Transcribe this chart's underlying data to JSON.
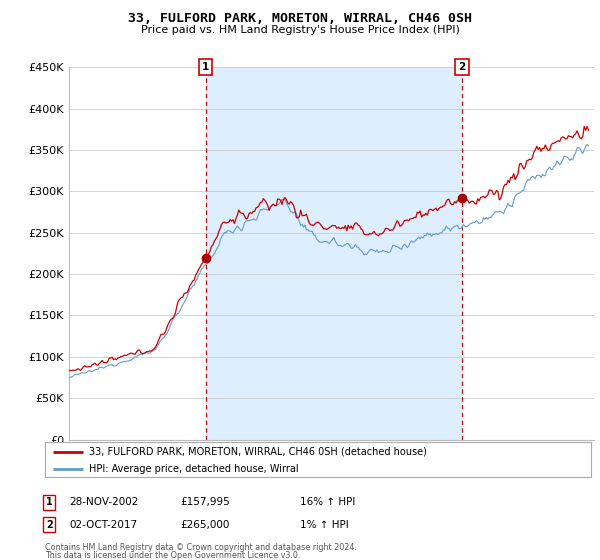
{
  "title": "33, FULFORD PARK, MORETON, WIRRAL, CH46 0SH",
  "subtitle": "Price paid vs. HM Land Registry's House Price Index (HPI)",
  "ylabel_ticks": [
    "£0",
    "£50K",
    "£100K",
    "£150K",
    "£200K",
    "£250K",
    "£300K",
    "£350K",
    "£400K",
    "£450K"
  ],
  "ytick_vals": [
    0,
    50000,
    100000,
    150000,
    200000,
    250000,
    300000,
    350000,
    400000,
    450000
  ],
  "ylim": [
    0,
    450000
  ],
  "xlim_start": 1995.0,
  "xlim_end": 2025.4,
  "legend_line1": "33, FULFORD PARK, MORETON, WIRRAL, CH46 0SH (detached house)",
  "legend_line2": "HPI: Average price, detached house, Wirral",
  "line_color_red": "#cc0000",
  "line_color_blue": "#6699cc",
  "fill_color": "#ddeeff",
  "marker_color_red": "#aa0000",
  "vline_color": "#cc0000",
  "annotation1": {
    "number": "1",
    "date": "28-NOV-2002",
    "price": "£157,995",
    "hpi": "16% ↑ HPI",
    "x": 2002.91,
    "y_sale": 157995
  },
  "annotation2": {
    "number": "2",
    "date": "02-OCT-2017",
    "price": "£265,000",
    "hpi": "1% ↑ HPI",
    "x": 2017.75,
    "y_sale": 265000
  },
  "footer1": "Contains HM Land Registry data © Crown copyright and database right 2024.",
  "footer2": "This data is licensed under the Open Government Licence v3.0.",
  "background_color": "#ffffff",
  "grid_color": "#cccccc"
}
